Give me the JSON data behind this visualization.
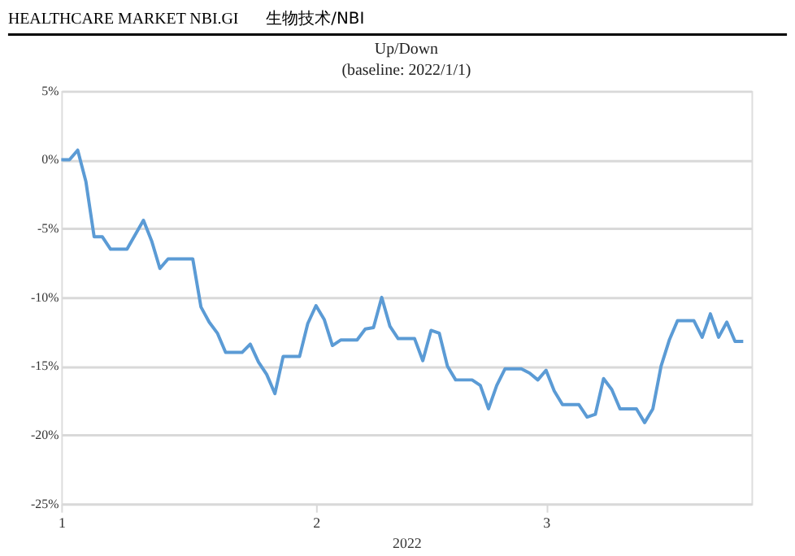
{
  "chart_data": {
    "type": "line",
    "title": "Up/Down",
    "subtitle": "(baseline: 2022/1/1)",
    "xlabel": "2022",
    "annotations": [
      "HEALTHCARE MARKET NBI.GI",
      "生物技术/NBI"
    ],
    "x": [
      "2022-01-01",
      "2022-01-02",
      "2022-01-03",
      "2022-01-04",
      "2022-01-05",
      "2022-01-06",
      "2022-01-07",
      "2022-01-09",
      "2022-01-11",
      "2022-01-12",
      "2022-01-13",
      "2022-01-14",
      "2022-01-17",
      "2022-01-18",
      "2022-01-19",
      "2022-01-20",
      "2022-01-21",
      "2022-01-23",
      "2022-01-24",
      "2022-01-25",
      "2022-01-26",
      "2022-01-27",
      "2022-01-28",
      "2022-01-30",
      "2022-01-31",
      "2022-02-01",
      "2022-02-02",
      "2022-02-03",
      "2022-02-04",
      "2022-02-06",
      "2022-02-07",
      "2022-02-08",
      "2022-02-09",
      "2022-02-10",
      "2022-02-11",
      "2022-02-13",
      "2022-02-14",
      "2022-02-15",
      "2022-02-16",
      "2022-02-17",
      "2022-02-18",
      "2022-02-20",
      "2022-02-21",
      "2022-02-22",
      "2022-02-23",
      "2022-02-24",
      "2022-02-26",
      "2022-02-27",
      "2022-02-28",
      "2022-03-01",
      "2022-03-02",
      "2022-03-03",
      "2022-03-05",
      "2022-03-06",
      "2022-03-07",
      "2022-03-08",
      "2022-03-09",
      "2022-03-10",
      "2022-03-12",
      "2022-03-13",
      "2022-03-14",
      "2022-03-15",
      "2022-03-16",
      "2022-03-17",
      "2022-03-19",
      "2022-03-20",
      "2022-03-21",
      "2022-03-22",
      "2022-03-23",
      "2022-03-24",
      "2022-03-25"
    ],
    "series": [
      {
        "color": "#5b9bd5",
        "values": [
          0,
          0,
          0.7,
          -1.6,
          -5.6,
          -5.6,
          -6.5,
          -6.5,
          -4.4,
          -5.9,
          -7.9,
          -7.2,
          -7.2,
          -10.7,
          -11.8,
          -12.6,
          -14.0,
          -14.0,
          -13.4,
          -14.7,
          -15.6,
          -17.0,
          -14.3,
          -14.3,
          -11.9,
          -10.6,
          -11.6,
          -13.5,
          -13.1,
          -13.1,
          -12.3,
          -12.2,
          -10.0,
          -12.1,
          -13.0,
          -13.0,
          -14.6,
          -12.4,
          -12.6,
          -15.0,
          -16.0,
          -16.0,
          -16.4,
          -18.1,
          -16.4,
          -15.2,
          -15.2,
          -15.5,
          -16.0,
          -15.3,
          -16.8,
          -17.8,
          -17.8,
          -18.7,
          -18.5,
          -15.9,
          -16.7,
          -18.1,
          -18.1,
          -19.1,
          -18.1,
          -15.0,
          -13.1,
          -11.7,
          -11.7,
          -12.9,
          -11.2,
          -12.9,
          -11.8,
          -13.2,
          -13.2
        ]
      }
    ],
    "xlim": [
      "2022-01-01",
      "2022-03-26"
    ],
    "xticks": [
      {
        "value": "2022-01-01",
        "label": "1"
      },
      {
        "value": "2022-02-01",
        "label": "2"
      },
      {
        "value": "2022-03-01",
        "label": "3"
      }
    ],
    "ylim": [
      -25,
      5
    ],
    "yticks": [
      {
        "value": 5,
        "label": "5%"
      },
      {
        "value": 0,
        "label": "0%"
      },
      {
        "value": -5,
        "label": "-5%"
      },
      {
        "value": -10,
        "label": "-10%"
      },
      {
        "value": -15,
        "label": "-15%"
      },
      {
        "value": -20,
        "label": "-20%"
      },
      {
        "value": -25,
        "label": "-25%"
      }
    ],
    "grid": "y",
    "marker": "none",
    "line_style": "solid"
  }
}
